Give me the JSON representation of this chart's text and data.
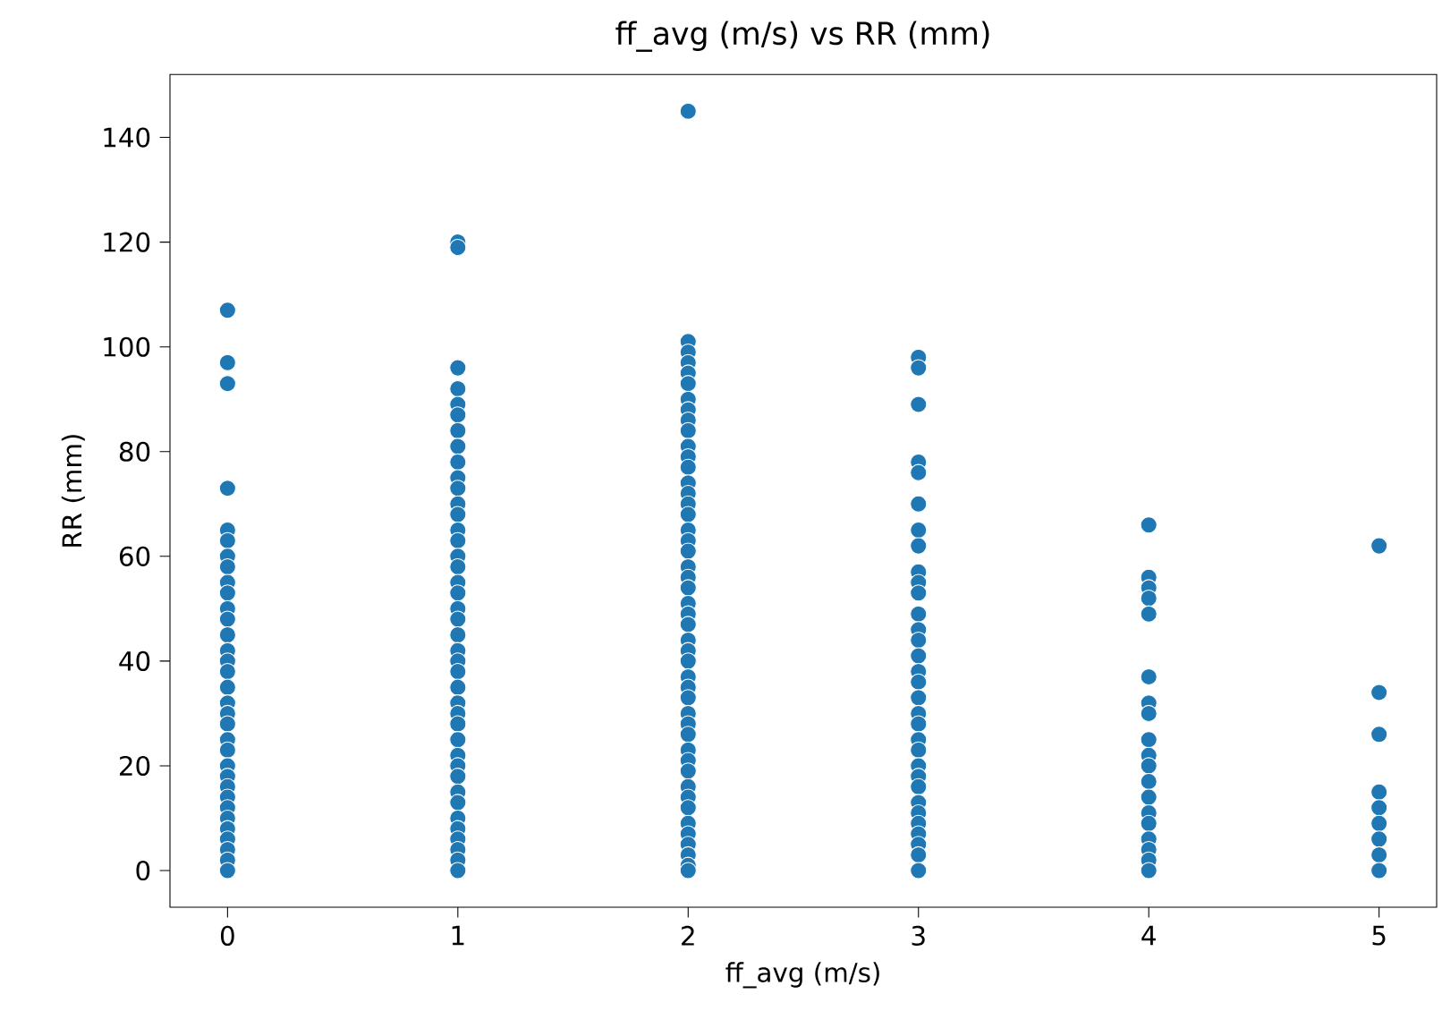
{
  "chart_data": {
    "type": "scatter",
    "title": "ff_avg (m/s) vs RR (mm)",
    "xlabel": "ff_avg (m/s)",
    "ylabel": "RR (mm)",
    "color": "#1f77b4",
    "xlim": [
      -0.25,
      5.25
    ],
    "xticks": [
      0,
      1,
      2,
      3,
      4,
      5
    ],
    "ylim": [
      -7,
      152
    ],
    "yticks": [
      0,
      20,
      40,
      60,
      80,
      100,
      120,
      140
    ],
    "x": [
      0,
      0,
      0,
      0,
      0,
      0,
      0,
      0,
      0,
      0,
      0,
      0,
      0,
      0,
      0,
      0,
      0,
      0,
      0,
      0,
      0,
      0,
      0,
      0,
      0,
      0,
      0,
      0,
      0,
      0,
      0,
      0,
      0,
      1,
      1,
      1,
      1,
      1,
      1,
      1,
      1,
      1,
      1,
      1,
      1,
      1,
      1,
      1,
      1,
      1,
      1,
      1,
      1,
      1,
      1,
      1,
      1,
      1,
      1,
      1,
      1,
      1,
      1,
      1,
      1,
      1,
      1,
      1,
      1,
      1,
      1,
      1,
      1,
      1,
      2,
      2,
      2,
      2,
      2,
      2,
      2,
      2,
      2,
      2,
      2,
      2,
      2,
      2,
      2,
      2,
      2,
      2,
      2,
      2,
      2,
      2,
      2,
      2,
      2,
      2,
      2,
      2,
      2,
      2,
      2,
      2,
      2,
      2,
      2,
      2,
      2,
      2,
      2,
      2,
      2,
      2,
      2,
      2,
      2,
      2,
      2,
      3,
      3,
      3,
      3,
      3,
      3,
      3,
      3,
      3,
      3,
      3,
      3,
      3,
      3,
      3,
      3,
      3,
      3,
      3,
      3,
      3,
      3,
      3,
      3,
      3,
      3,
      3,
      3,
      3,
      3,
      3,
      3,
      4,
      4,
      4,
      4,
      4,
      4,
      4,
      4,
      4,
      4,
      4,
      4,
      4,
      4,
      4,
      4,
      4,
      4,
      4,
      5,
      5,
      5,
      5,
      5,
      5,
      5,
      5,
      5
    ],
    "values": [
      107,
      97,
      93,
      73,
      65,
      63,
      60,
      58,
      55,
      53,
      50,
      48,
      45,
      42,
      40,
      38,
      35,
      32,
      30,
      28,
      25,
      23,
      20,
      18,
      16,
      14,
      12,
      10,
      8,
      6,
      4,
      2,
      0,
      120,
      119,
      96,
      92,
      89,
      87,
      84,
      81,
      78,
      75,
      73,
      70,
      68,
      65,
      63,
      60,
      58,
      55,
      53,
      50,
      48,
      45,
      42,
      40,
      38,
      35,
      32,
      30,
      28,
      25,
      22,
      20,
      18,
      15,
      13,
      10,
      8,
      6,
      4,
      2,
      0,
      145,
      101,
      99,
      97,
      95,
      93,
      90,
      88,
      86,
      84,
      81,
      79,
      77,
      74,
      72,
      70,
      68,
      65,
      63,
      61,
      58,
      56,
      54,
      51,
      49,
      47,
      44,
      42,
      40,
      37,
      35,
      33,
      30,
      28,
      26,
      23,
      21,
      19,
      16,
      14,
      12,
      9,
      7,
      5,
      3,
      1,
      0,
      98,
      96,
      89,
      78,
      76,
      70,
      65,
      62,
      57,
      55,
      53,
      49,
      46,
      44,
      41,
      38,
      36,
      33,
      30,
      28,
      25,
      23,
      20,
      18,
      16,
      13,
      11,
      9,
      7,
      5,
      3,
      0,
      66,
      56,
      54,
      52,
      49,
      37,
      32,
      30,
      25,
      22,
      20,
      17,
      14,
      11,
      9,
      6,
      4,
      2,
      0,
      62,
      34,
      26,
      15,
      12,
      9,
      6,
      3,
      0
    ]
  }
}
